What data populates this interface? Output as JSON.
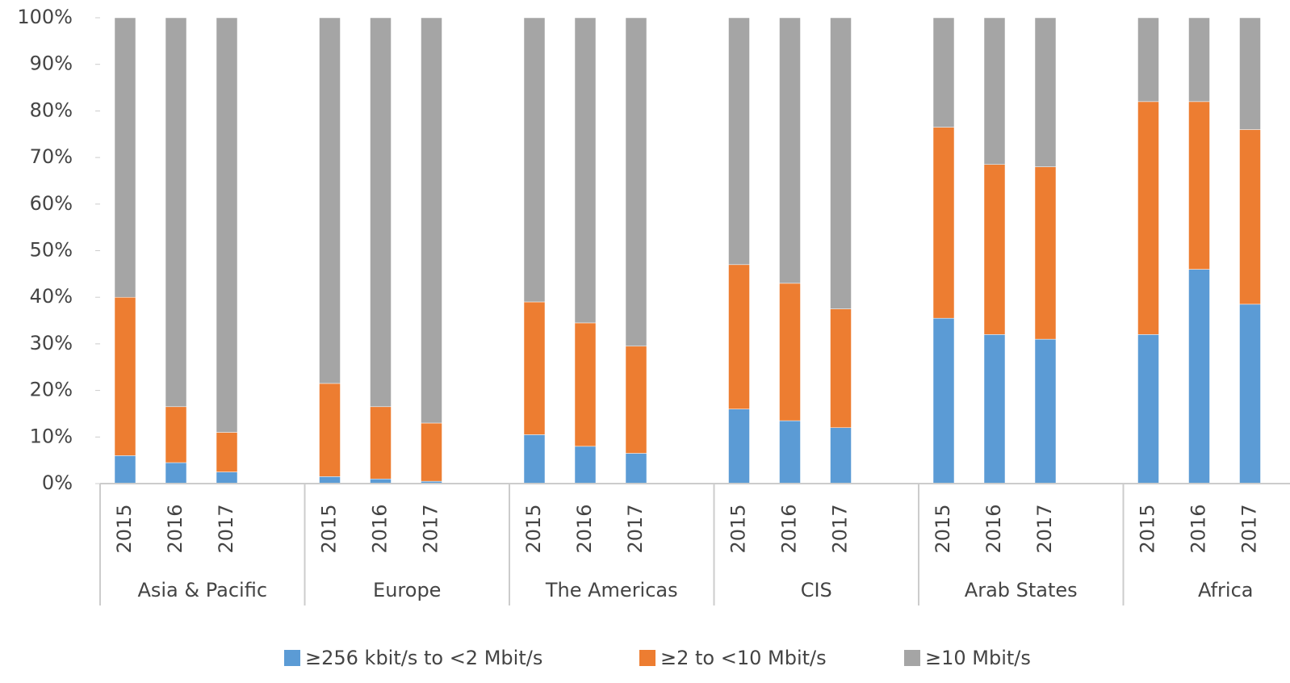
{
  "chart_data": {
    "type": "stacked_bar",
    "categories": [
      "2015",
      "2016",
      "2017",
      "2015",
      "2016",
      "2017",
      "2015",
      "2016",
      "2017",
      "2015",
      "2016",
      "2017",
      "2015",
      "2016",
      "2017",
      "2015",
      "2016",
      "2017"
    ],
    "groups": [
      "Asia & Pacific",
      "Europe",
      "The Americas",
      "CIS",
      "Arab States",
      "Africa"
    ],
    "series": [
      {
        "name": "≥256 kbit/s to <2 Mbit/s",
        "color": "#5b9bd5",
        "values": [
          6,
          4.5,
          2.5,
          1.5,
          1,
          0.5,
          10.5,
          8,
          6.5,
          16,
          13.5,
          12,
          35.5,
          32,
          31,
          32,
          46,
          38.5
        ]
      },
      {
        "name": "≥2 to <10 Mbit/s",
        "color": "#ed7d31",
        "values": [
          34,
          12,
          8.5,
          20,
          15.5,
          12.5,
          28.5,
          26.5,
          23,
          31,
          29.5,
          25.5,
          41,
          36.5,
          37,
          50,
          36,
          37.5
        ]
      },
      {
        "name": "≥10 Mbit/s",
        "color": "#a5a5a5",
        "values": [
          60,
          83.5,
          89,
          78.5,
          83.5,
          87,
          61,
          65.5,
          70.5,
          53,
          57,
          62.5,
          23.5,
          31.5,
          32,
          18,
          18,
          24
        ]
      }
    ],
    "ylim": [
      0,
      100
    ],
    "yticks": [
      {
        "value": 0,
        "label": "0%"
      },
      {
        "value": 10,
        "label": "10%"
      },
      {
        "value": 20,
        "label": "20%"
      },
      {
        "value": 30,
        "label": "30%"
      },
      {
        "value": 40,
        "label": "40%"
      },
      {
        "value": 50,
        "label": "50%"
      },
      {
        "value": 60,
        "label": "60%"
      },
      {
        "value": 70,
        "label": "70%"
      },
      {
        "value": 80,
        "label": "80%"
      },
      {
        "value": 90,
        "label": "90%"
      },
      {
        "value": 100,
        "label": "100%"
      }
    ],
    "legend": "bottom",
    "grid": false
  }
}
